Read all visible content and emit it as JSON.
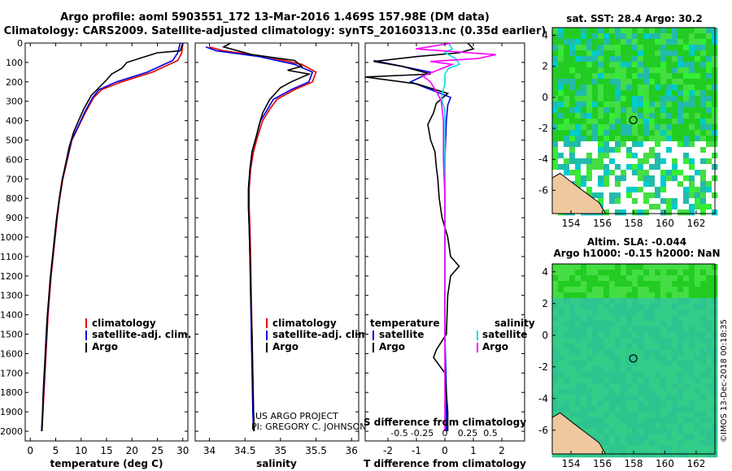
{
  "header": {
    "line1": "Argo profile: aoml 5903551_172 13-Mar-2016 1.469S 157.98E (DM data)",
    "line2": "Climatology: CARS2009. Satellite-adjusted climatology: synTS_20160313.nc (0.35d earlier)"
  },
  "colors": {
    "climatology": "#e00000",
    "satellite": "#0000e0",
    "argo": "#000000",
    "sat_salinity": "#00e0e0",
    "clim_salinity": "#ff00ff"
  },
  "chart_data": [
    {
      "type": "line",
      "name": "temperature",
      "xlabel": "temperature (deg C)",
      "ylabel": "",
      "xlim": [
        -1,
        31
      ],
      "ylim": [
        2050,
        0
      ],
      "xticks": [
        0,
        5,
        10,
        15,
        20,
        25,
        30
      ],
      "yticks": [
        0,
        100,
        200,
        300,
        400,
        500,
        600,
        700,
        800,
        900,
        1000,
        1100,
        1200,
        1300,
        1400,
        1500,
        1600,
        1700,
        1800,
        1900,
        2000
      ],
      "legend": [
        "climatology",
        "satellite-adj. clim.",
        "Argo"
      ],
      "series": [
        {
          "name": "climatology",
          "color": "#e00000",
          "points": [
            [
              30,
              0
            ],
            [
              29.8,
              50
            ],
            [
              29,
              90
            ],
            [
              24,
              150
            ],
            [
              18,
              200
            ],
            [
              14,
              240
            ],
            [
              12.5,
              280
            ],
            [
              11,
              350
            ],
            [
              9.5,
              430
            ],
            [
              8.2,
              500
            ],
            [
              7.3,
              600
            ],
            [
              6.4,
              700
            ],
            [
              5.8,
              800
            ],
            [
              5.3,
              900
            ],
            [
              4.9,
              1000
            ],
            [
              4.5,
              1100
            ],
            [
              4.1,
              1200
            ],
            [
              3.8,
              1300
            ],
            [
              3.5,
              1400
            ],
            [
              3.3,
              1500
            ],
            [
              3.1,
              1600
            ],
            [
              2.9,
              1700
            ],
            [
              2.7,
              1800
            ],
            [
              2.5,
              1900
            ],
            [
              2.3,
              2000
            ]
          ]
        },
        {
          "name": "satellite",
          "color": "#0000e0",
          "points": [
            [
              29.5,
              0
            ],
            [
              29,
              50
            ],
            [
              28,
              90
            ],
            [
              23,
              150
            ],
            [
              17,
              200
            ],
            [
              13.5,
              240
            ],
            [
              12.3,
              280
            ],
            [
              10.8,
              350
            ],
            [
              9.4,
              430
            ],
            [
              8.1,
              500
            ],
            [
              7.2,
              600
            ],
            [
              6.3,
              700
            ],
            [
              5.7,
              800
            ],
            [
              5.2,
              900
            ],
            [
              4.8,
              1000
            ],
            [
              4.4,
              1100
            ],
            [
              4.0,
              1200
            ],
            [
              3.7,
              1300
            ],
            [
              3.4,
              1400
            ],
            [
              3.2,
              1500
            ],
            [
              3.0,
              1600
            ],
            [
              2.8,
              1700
            ],
            [
              2.6,
              1800
            ],
            [
              2.4,
              1900
            ],
            [
              2.2,
              2000
            ]
          ]
        },
        {
          "name": "Argo",
          "color": "#000000",
          "points": [
            [
              30,
              0
            ],
            [
              29.5,
              40
            ],
            [
              25,
              50
            ],
            [
              22,
              75
            ],
            [
              19,
              100
            ],
            [
              18,
              130
            ],
            [
              16,
              160
            ],
            [
              15,
              190
            ],
            [
              13.5,
              230
            ],
            [
              12,
              270
            ],
            [
              10.5,
              340
            ],
            [
              9.5,
              400
            ],
            [
              8.5,
              460
            ],
            [
              7.6,
              540
            ],
            [
              6.8,
              640
            ],
            [
              6.2,
              720
            ],
            [
              5.6,
              820
            ],
            [
              5.1,
              920
            ],
            [
              4.7,
              1020
            ],
            [
              4.3,
              1120
            ],
            [
              3.9,
              1220
            ],
            [
              3.6,
              1320
            ],
            [
              3.3,
              1420
            ],
            [
              3.1,
              1520
            ],
            [
              2.9,
              1620
            ],
            [
              2.7,
              1720
            ],
            [
              2.5,
              1820
            ],
            [
              2.4,
              1920
            ],
            [
              2.3,
              2000
            ]
          ]
        }
      ]
    },
    {
      "type": "line",
      "name": "salinity",
      "xlabel": "salinity",
      "xlim": [
        33.8,
        36.1
      ],
      "ylim": [
        2050,
        0
      ],
      "xticks": [
        34,
        34.5,
        35,
        35.5,
        36
      ],
      "legend": [
        "climatology",
        "satellite-adj. clim.",
        "Argo"
      ],
      "series": [
        {
          "name": "climatology",
          "color": "#e00000",
          "points": [
            [
              34.0,
              20
            ],
            [
              34.2,
              40
            ],
            [
              34.8,
              70
            ],
            [
              35.3,
              110
            ],
            [
              35.5,
              150
            ],
            [
              35.45,
              200
            ],
            [
              35.2,
              240
            ],
            [
              34.95,
              290
            ],
            [
              34.85,
              340
            ],
            [
              34.75,
              400
            ],
            [
              34.68,
              480
            ],
            [
              34.62,
              560
            ],
            [
              34.58,
              650
            ],
            [
              34.56,
              750
            ],
            [
              34.56,
              850
            ],
            [
              34.57,
              950
            ],
            [
              34.58,
              1100
            ],
            [
              34.59,
              1300
            ],
            [
              34.6,
              1500
            ],
            [
              34.61,
              1700
            ],
            [
              34.62,
              1900
            ],
            [
              34.63,
              2000
            ]
          ]
        },
        {
          "name": "satellite",
          "color": "#0000e0",
          "points": [
            [
              33.95,
              20
            ],
            [
              34.1,
              40
            ],
            [
              34.7,
              70
            ],
            [
              35.2,
              110
            ],
            [
              35.45,
              150
            ],
            [
              35.4,
              200
            ],
            [
              35.15,
              240
            ],
            [
              34.9,
              290
            ],
            [
              34.82,
              340
            ],
            [
              34.72,
              400
            ],
            [
              34.66,
              480
            ],
            [
              34.6,
              560
            ],
            [
              34.57,
              650
            ],
            [
              34.55,
              750
            ],
            [
              34.55,
              850
            ],
            [
              34.56,
              950
            ],
            [
              34.57,
              1100
            ],
            [
              34.58,
              1300
            ],
            [
              34.59,
              1500
            ],
            [
              34.6,
              1700
            ],
            [
              34.61,
              1900
            ],
            [
              34.62,
              2000
            ]
          ]
        },
        {
          "name": "Argo",
          "color": "#000000",
          "points": [
            [
              34.3,
              0
            ],
            [
              34.2,
              20
            ],
            [
              34.6,
              60
            ],
            [
              35.2,
              90
            ],
            [
              35.3,
              120
            ],
            [
              35.1,
              140
            ],
            [
              35.4,
              160
            ],
            [
              35.15,
              200
            ],
            [
              35.0,
              230
            ],
            [
              34.85,
              290
            ],
            [
              34.75,
              360
            ],
            [
              34.7,
              420
            ],
            [
              34.66,
              480
            ],
            [
              34.6,
              560
            ],
            [
              34.57,
              650
            ],
            [
              34.55,
              750
            ],
            [
              34.55,
              850
            ],
            [
              34.56,
              950
            ],
            [
              34.57,
              1100
            ],
            [
              34.58,
              1300
            ],
            [
              34.6,
              1500
            ],
            [
              34.61,
              1700
            ],
            [
              34.62,
              1900
            ],
            [
              34.63,
              2000
            ]
          ]
        }
      ],
      "annotations": [
        "US ARGO PROJECT",
        "PI: GREGORY C. JOHNSON"
      ]
    },
    {
      "type": "line",
      "name": "differences",
      "xlabel": "T difference from climatology",
      "x2label": "S difference from climatology",
      "xlim": [
        -2.8,
        2.8
      ],
      "ylim": [
        2050,
        0
      ],
      "xticks": [
        -2,
        -1,
        0,
        1,
        2
      ],
      "x2ticks": [
        -0.5,
        -0.25,
        0,
        0.25,
        0.5
      ],
      "x2ticklabels": [
        "-0.5",
        "-0.25",
        "0",
        "0.25",
        "0.5"
      ],
      "legend_left_title": "temperature",
      "legend_right_title": "salinity",
      "legend": [
        "satellite",
        "Argo",
        "satellite",
        "Argo"
      ],
      "series": [
        {
          "name": "T satellite",
          "color": "#0000e0",
          "points": [
            [
              -2.5,
              90
            ],
            [
              -1.5,
              120
            ],
            [
              -0.5,
              150
            ],
            [
              -1.2,
              200
            ],
            [
              0.2,
              280
            ],
            [
              0.1,
              320
            ],
            [
              0.05,
              400
            ],
            [
              0.0,
              600
            ],
            [
              0.0,
              800
            ],
            [
              0.0,
              1000
            ],
            [
              0.0,
              1200
            ],
            [
              0.0,
              1500
            ],
            [
              0.05,
              1800
            ],
            [
              0.05,
              2000
            ]
          ]
        },
        {
          "name": "T Argo",
          "color": "#000000",
          "points": [
            [
              0.8,
              0
            ],
            [
              1.0,
              30
            ],
            [
              0.5,
              50
            ],
            [
              -1.0,
              70
            ],
            [
              -2.5,
              95
            ],
            [
              -1.5,
              120
            ],
            [
              -0.5,
              160
            ],
            [
              -2.8,
              175
            ],
            [
              -1.0,
              210
            ],
            [
              0.1,
              260
            ],
            [
              -0.3,
              310
            ],
            [
              -0.4,
              360
            ],
            [
              -0.6,
              420
            ],
            [
              -0.5,
              500
            ],
            [
              -0.35,
              560
            ],
            [
              -0.3,
              640
            ],
            [
              -0.25,
              700
            ],
            [
              -0.2,
              800
            ],
            [
              -0.1,
              900
            ],
            [
              0.1,
              1000
            ],
            [
              0.2,
              1100
            ],
            [
              0.5,
              1150
            ],
            [
              0.2,
              1200
            ],
            [
              0.1,
              1300
            ],
            [
              0.05,
              1500
            ],
            [
              -0.3,
              1580
            ],
            [
              -0.4,
              1620
            ],
            [
              0.0,
              1700
            ],
            [
              0.05,
              1800
            ],
            [
              0.1,
              1900
            ],
            [
              0.1,
              2000
            ]
          ]
        },
        {
          "name": "S satellite",
          "color": "#00e0e0",
          "points": [
            [
              0.05,
              0
            ],
            [
              0.1,
              30
            ],
            [
              0.0,
              50
            ],
            [
              0.15,
              80
            ],
            [
              0.2,
              110
            ],
            [
              0.05,
              130
            ],
            [
              0.0,
              160
            ],
            [
              0.0,
              210
            ],
            [
              -0.05,
              280
            ],
            [
              0.0,
              350
            ],
            [
              0.0,
              500
            ],
            [
              0.0,
              800
            ],
            [
              0.0,
              1200
            ],
            [
              0.0,
              1600
            ],
            [
              0.0,
              1800
            ],
            [
              0.0,
              2000
            ]
          ]
        },
        {
          "name": "S Argo",
          "color": "#ff00ff",
          "points": [
            [
              0.1,
              0
            ],
            [
              -0.4,
              30
            ],
            [
              0.7,
              60
            ],
            [
              0.45,
              80
            ],
            [
              -0.2,
              95
            ],
            [
              0.1,
              110
            ],
            [
              -0.1,
              140
            ],
            [
              -0.3,
              170
            ],
            [
              -0.2,
              200
            ],
            [
              -0.1,
              260
            ],
            [
              -0.05,
              300
            ],
            [
              -0.02,
              400
            ],
            [
              -0.02,
              600
            ],
            [
              0.0,
              800
            ],
            [
              0.0,
              1000
            ],
            [
              0.0,
              1300
            ],
            [
              0.0,
              1600
            ],
            [
              0.0,
              1800
            ],
            [
              0.0,
              2000
            ]
          ]
        }
      ]
    },
    {
      "type": "heatmap",
      "name": "sst_map",
      "title": "sat. SST: 28.4 Argo: 30.2",
      "xlim": [
        152.8,
        163.2
      ],
      "ylim": [
        -7.5,
        4.5
      ],
      "xticks": [
        154,
        156,
        158,
        160,
        162
      ],
      "yticks": [
        -6,
        -4,
        -2,
        0,
        2,
        4
      ],
      "argo_position": [
        157.98,
        -1.469
      ]
    },
    {
      "type": "heatmap",
      "name": "sla_map",
      "title_line1": "Altim. SLA: -0.044",
      "title_line2": "Argo h1000: -0.15 h2000: NaN",
      "xlim": [
        152.8,
        163.2
      ],
      "ylim": [
        -7.5,
        4.5
      ],
      "xticks": [
        154,
        156,
        158,
        160,
        162
      ],
      "yticks": [
        -6,
        -4,
        -2,
        0,
        2,
        4
      ],
      "argo_position": [
        157.98,
        -1.469
      ]
    }
  ],
  "footer_stamp": "©IMOS 13-Dec-2018 00:18:35"
}
